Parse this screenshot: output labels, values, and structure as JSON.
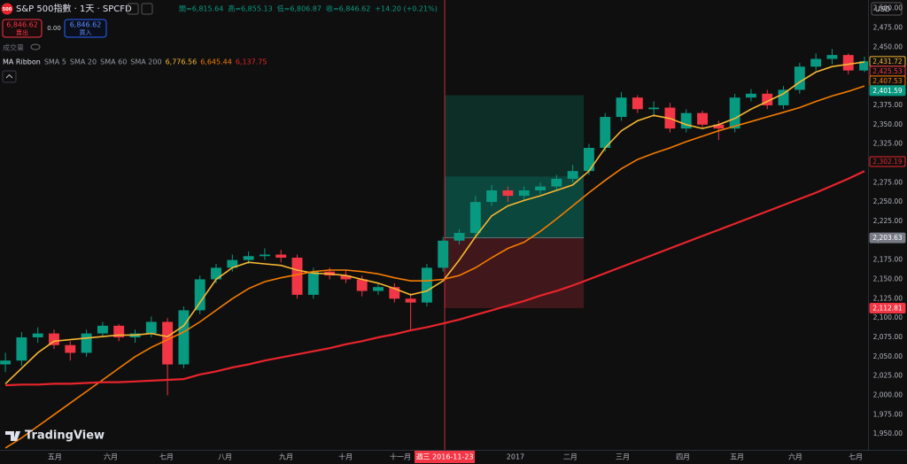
{
  "header": {
    "logo": "500",
    "title": "S&P 500指數 · 1天 · SPCFD",
    "ohlc": [
      "開=6,815.64",
      "高=6,855.13",
      "低=6,806.87",
      "收=6,846.62",
      "+14.20 (+0.21%)"
    ],
    "sell_price": "6,846.62",
    "sell": "賣出",
    "spread": "0.00",
    "buy_price": "6,846.62",
    "buy": "買入",
    "volume": "成交量",
    "ma_title": "MA Ribbon",
    "ma_extra": "SMA 5",
    "currency": "USD",
    "brand": "TradingView"
  },
  "chart_data": {
    "type": "candlestick",
    "x": [
      2,
      8,
      14,
      20,
      26,
      32,
      38,
      44,
      50,
      56,
      62,
      68,
      74,
      80,
      86,
      92,
      98,
      104,
      110,
      116,
      122,
      128,
      134,
      140,
      146,
      152,
      158,
      164,
      170,
      176,
      182,
      188,
      194,
      200,
      206,
      212,
      218,
      224,
      230,
      236,
      242,
      248,
      254,
      260,
      266,
      272,
      278,
      284,
      290,
      296,
      302,
      308,
      314,
      320
    ],
    "open": [
      2040,
      2045,
      2075,
      2080,
      2065,
      2055,
      2080,
      2090,
      2075,
      2080,
      2095,
      2040,
      2110,
      2150,
      2165,
      2175,
      2180,
      2182,
      2178,
      2130,
      2160,
      2155,
      2150,
      2135,
      2140,
      2125,
      2120,
      2165,
      2200,
      2210,
      2250,
      2265,
      2258,
      2265,
      2270,
      2280,
      2290,
      2320,
      2360,
      2385,
      2370,
      2372,
      2345,
      2365,
      2350,
      2345,
      2385,
      2390,
      2375,
      2395,
      2425,
      2435,
      2440,
      2420
    ],
    "high": [
      2055,
      2082,
      2088,
      2085,
      2070,
      2085,
      2095,
      2092,
      2085,
      2102,
      2100,
      2115,
      2155,
      2170,
      2182,
      2186,
      2190,
      2188,
      2182,
      2165,
      2165,
      2162,
      2155,
      2145,
      2145,
      2132,
      2170,
      2205,
      2215,
      2258,
      2272,
      2270,
      2270,
      2275,
      2285,
      2298,
      2325,
      2365,
      2392,
      2388,
      2380,
      2378,
      2370,
      2368,
      2355,
      2390,
      2396,
      2395,
      2400,
      2430,
      2442,
      2448,
      2442,
      2438
    ],
    "low": [
      2030,
      2038,
      2068,
      2060,
      2045,
      2050,
      2075,
      2070,
      2068,
      2075,
      2000,
      2035,
      2105,
      2145,
      2160,
      2170,
      2175,
      2172,
      2125,
      2125,
      2150,
      2145,
      2128,
      2130,
      2120,
      2085,
      2115,
      2160,
      2195,
      2205,
      2245,
      2250,
      2252,
      2260,
      2265,
      2275,
      2285,
      2315,
      2355,
      2365,
      2360,
      2340,
      2340,
      2345,
      2330,
      2340,
      2380,
      2370,
      2370,
      2390,
      2420,
      2428,
      2415,
      2418
    ],
    "close": [
      2045,
      2075,
      2080,
      2065,
      2055,
      2080,
      2090,
      2075,
      2080,
      2095,
      2040,
      2110,
      2150,
      2165,
      2175,
      2180,
      2182,
      2178,
      2130,
      2160,
      2155,
      2150,
      2135,
      2140,
      2125,
      2120,
      2165,
      2200,
      2210,
      2250,
      2265,
      2258,
      2265,
      2270,
      2280,
      2290,
      2320,
      2360,
      2385,
      2370,
      2372,
      2345,
      2365,
      2350,
      2345,
      2385,
      2390,
      2375,
      2395,
      2425,
      2435,
      2440,
      2420,
      2432
    ],
    "up_color": "#089981",
    "down_color": "#f23645",
    "series": [
      {
        "name": "SMA 20",
        "color": "#f7b731",
        "last_label": "6,776.56",
        "values": [
          2015,
          2035,
          2055,
          2070,
          2072,
          2074,
          2076,
          2078,
          2078,
          2080,
          2076,
          2090,
          2120,
          2150,
          2165,
          2172,
          2170,
          2168,
          2162,
          2158,
          2157,
          2155,
          2150,
          2145,
          2138,
          2130,
          2135,
          2148,
          2175,
          2205,
          2232,
          2245,
          2252,
          2258,
          2265,
          2272,
          2290,
          2320,
          2342,
          2355,
          2362,
          2358,
          2350,
          2345,
          2350,
          2358,
          2370,
          2380,
          2390,
          2405,
          2418,
          2425,
          2428,
          2431
        ]
      },
      {
        "name": "SMA 60",
        "color": "#f57c00",
        "last_label": "6,645.44",
        "values": [
          1932,
          1945,
          1960,
          1975,
          1990,
          2005,
          2020,
          2035,
          2050,
          2062,
          2072,
          2082,
          2095,
          2110,
          2125,
          2138,
          2147,
          2152,
          2156,
          2160,
          2162,
          2162,
          2160,
          2157,
          2152,
          2148,
          2148,
          2150,
          2155,
          2165,
          2178,
          2190,
          2198,
          2212,
          2228,
          2245,
          2262,
          2278,
          2293,
          2305,
          2313,
          2320,
          2328,
          2335,
          2342,
          2348,
          2354,
          2360,
          2366,
          2372,
          2380,
          2387,
          2393,
          2400
        ]
      },
      {
        "name": "SMA 200",
        "color": "#e8242c",
        "last_label": "6,137.75",
        "values": [
          2013,
          2014,
          2014,
          2015,
          2015,
          2016,
          2017,
          2017,
          2018,
          2019,
          2020,
          2021,
          2027,
          2031,
          2036,
          2040,
          2045,
          2049,
          2053,
          2057,
          2061,
          2066,
          2070,
          2075,
          2079,
          2084,
          2088,
          2093,
          2098,
          2104,
          2110,
          2116,
          2122,
          2129,
          2135,
          2142,
          2150,
          2158,
          2166,
          2174,
          2182,
          2190,
          2198,
          2206,
          2214,
          2222,
          2230,
          2238,
          2246,
          2254,
          2262,
          2271,
          2280,
          2290
        ]
      }
    ],
    "xlim": [
      0,
      321.3
    ],
    "ylim": [
      1925,
      2510
    ],
    "xticks": [
      {
        "value": 20.3,
        "label": "五月"
      },
      {
        "value": 41,
        "label": "六月"
      },
      {
        "value": 61.6,
        "label": "七月"
      },
      {
        "value": 83.3,
        "label": "八月"
      },
      {
        "value": 105.9,
        "label": "九月"
      },
      {
        "value": 127.9,
        "label": "十月"
      },
      {
        "value": 148.2,
        "label": "十一月"
      },
      {
        "value": 190.8,
        "label": "2017"
      },
      {
        "value": 211.1,
        "label": "二月"
      },
      {
        "value": 230.5,
        "label": "三月"
      },
      {
        "value": 252.8,
        "label": "四月"
      },
      {
        "value": 272.8,
        "label": "五月"
      },
      {
        "value": 294.4,
        "label": "六月"
      },
      {
        "value": 316.7,
        "label": "七月"
      }
    ],
    "yticks": [
      {
        "value": 1950,
        "label": "1,950.00"
      },
      {
        "value": 1975,
        "label": "1,975.00"
      },
      {
        "value": 2000,
        "label": "2,000.00"
      },
      {
        "value": 2025,
        "label": "2,025.00"
      },
      {
        "value": 2050,
        "label": "2,050.00"
      },
      {
        "value": 2075,
        "label": "2,075.00"
      },
      {
        "value": 2100,
        "label": "2,100.00"
      },
      {
        "value": 2125,
        "label": "2,125.00"
      },
      {
        "value": 2150,
        "label": "2,150.00"
      },
      {
        "value": 2175,
        "label": "2,175.00"
      },
      {
        "value": 2200,
        "label": "2,200.00"
      },
      {
        "value": 2225,
        "label": "2,225.00"
      },
      {
        "value": 2250,
        "label": "2,250.00"
      },
      {
        "value": 2275,
        "label": "2,275.00"
      },
      {
        "value": 2300,
        "label": "2,300.00"
      },
      {
        "value": 2325,
        "label": "2,325.00"
      },
      {
        "value": 2350,
        "label": "2,350.00"
      },
      {
        "value": 2375,
        "label": "2,375.00"
      },
      {
        "value": 2400,
        "label": "2,400.00"
      },
      {
        "value": 2425,
        "label": "2,425.00"
      },
      {
        "value": 2450,
        "label": "2,450.00"
      },
      {
        "value": 2475,
        "label": "2,475.00"
      },
      {
        "value": 2500,
        "label": "2,500.00"
      }
    ],
    "price_labels": [
      {
        "value": 2431.72,
        "label": "2,431.72",
        "color": "#f7b731",
        "filled": false
      },
      {
        "value": 2425.53,
        "label": "2,425.53",
        "color": "#f23645",
        "filled": false
      },
      {
        "value": 2407.53,
        "label": "2,407.53",
        "color": "#f57c00",
        "filled": false
      },
      {
        "value": 2401.59,
        "label": "2,401.59",
        "color": "#089981",
        "filled": true
      },
      {
        "value": 2302.19,
        "label": "2,302.19",
        "color": "#e8242c",
        "filled": false
      },
      {
        "value": 2203.63,
        "label": "2,203.63",
        "color": "#787b86",
        "filled": true
      },
      {
        "value": 2112.81,
        "label": "2,112.81",
        "color": "#f23645",
        "filled": true
      }
    ],
    "position": {
      "x": [
        164.6,
        216.1
      ],
      "target": 2388,
      "progress": 2283,
      "entry": 2203.63,
      "stop": 2112.81
    },
    "crosshair": {
      "x": 164.6,
      "label": "週三 2016-11-23"
    }
  }
}
